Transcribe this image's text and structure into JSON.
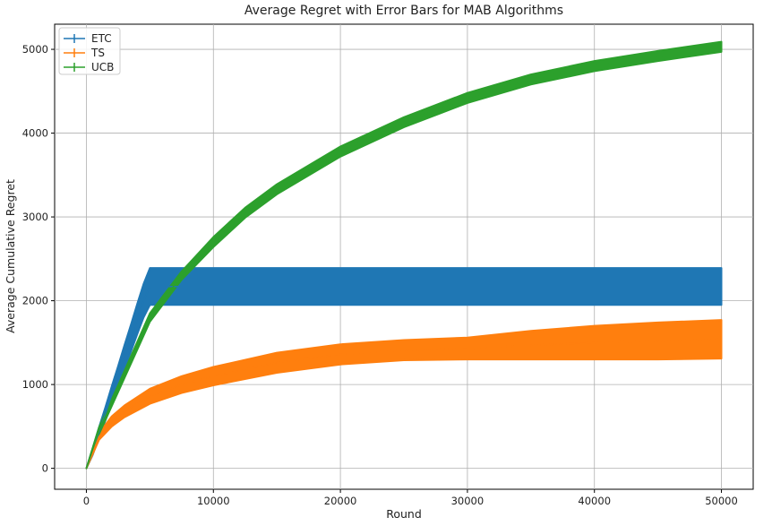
{
  "chart_data": {
    "type": "line",
    "title": "Average Regret with Error Bars for MAB Algorithms",
    "xlabel": "Round",
    "ylabel": "Average Cumulative Regret",
    "xlim": [
      -2500,
      52500
    ],
    "ylim": [
      -250,
      5300
    ],
    "xticks": [
      0,
      10000,
      20000,
      30000,
      40000,
      50000
    ],
    "yticks": [
      0,
      1000,
      2000,
      3000,
      4000,
      5000
    ],
    "grid": true,
    "legend_position": "top-left",
    "series": [
      {
        "name": "ETC",
        "color": "#1f77b4",
        "points": [
          {
            "x": 0,
            "mean": 0,
            "err": 0
          },
          {
            "x": 500,
            "mean": 200,
            "err": 40
          },
          {
            "x": 1000,
            "mean": 430,
            "err": 60
          },
          {
            "x": 1500,
            "mean": 650,
            "err": 80
          },
          {
            "x": 2000,
            "mean": 880,
            "err": 100
          },
          {
            "x": 2500,
            "mean": 1100,
            "err": 120
          },
          {
            "x": 3000,
            "mean": 1330,
            "err": 140
          },
          {
            "x": 3500,
            "mean": 1550,
            "err": 160
          },
          {
            "x": 4000,
            "mean": 1780,
            "err": 180
          },
          {
            "x": 4500,
            "mean": 2000,
            "err": 200
          },
          {
            "x": 5000,
            "mean": 2170,
            "err": 220
          },
          {
            "x": 10000,
            "mean": 2170,
            "err": 220
          },
          {
            "x": 20000,
            "mean": 2170,
            "err": 220
          },
          {
            "x": 30000,
            "mean": 2170,
            "err": 220
          },
          {
            "x": 40000,
            "mean": 2170,
            "err": 220
          },
          {
            "x": 50000,
            "mean": 2170,
            "err": 220
          }
        ]
      },
      {
        "name": "TS",
        "color": "#ff7f0e",
        "points": [
          {
            "x": 0,
            "mean": 0,
            "err": 0
          },
          {
            "x": 1000,
            "mean": 380,
            "err": 40
          },
          {
            "x": 2000,
            "mean": 560,
            "err": 60
          },
          {
            "x": 3000,
            "mean": 680,
            "err": 70
          },
          {
            "x": 5000,
            "mean": 860,
            "err": 90
          },
          {
            "x": 7500,
            "mean": 1000,
            "err": 100
          },
          {
            "x": 10000,
            "mean": 1100,
            "err": 110
          },
          {
            "x": 15000,
            "mean": 1260,
            "err": 120
          },
          {
            "x": 20000,
            "mean": 1360,
            "err": 120
          },
          {
            "x": 25000,
            "mean": 1410,
            "err": 120
          },
          {
            "x": 30000,
            "mean": 1430,
            "err": 130
          },
          {
            "x": 35000,
            "mean": 1470,
            "err": 170
          },
          {
            "x": 40000,
            "mean": 1500,
            "err": 200
          },
          {
            "x": 45000,
            "mean": 1520,
            "err": 220
          },
          {
            "x": 50000,
            "mean": 1540,
            "err": 230
          }
        ]
      },
      {
        "name": "UCB",
        "color": "#2ca02c",
        "points": [
          {
            "x": 0,
            "mean": 0,
            "err": 0
          },
          {
            "x": 1000,
            "mean": 450,
            "err": 40
          },
          {
            "x": 2500,
            "mean": 950,
            "err": 40
          },
          {
            "x": 5000,
            "mean": 1800,
            "err": 50
          },
          {
            "x": 7500,
            "mean": 2300,
            "err": 50
          },
          {
            "x": 10000,
            "mean": 2700,
            "err": 60
          },
          {
            "x": 12500,
            "mean": 3050,
            "err": 60
          },
          {
            "x": 15000,
            "mean": 3330,
            "err": 60
          },
          {
            "x": 20000,
            "mean": 3780,
            "err": 60
          },
          {
            "x": 25000,
            "mean": 4130,
            "err": 60
          },
          {
            "x": 30000,
            "mean": 4420,
            "err": 60
          },
          {
            "x": 35000,
            "mean": 4640,
            "err": 60
          },
          {
            "x": 40000,
            "mean": 4800,
            "err": 60
          },
          {
            "x": 45000,
            "mean": 4920,
            "err": 60
          },
          {
            "x": 50000,
            "mean": 5030,
            "err": 60
          }
        ]
      }
    ]
  }
}
